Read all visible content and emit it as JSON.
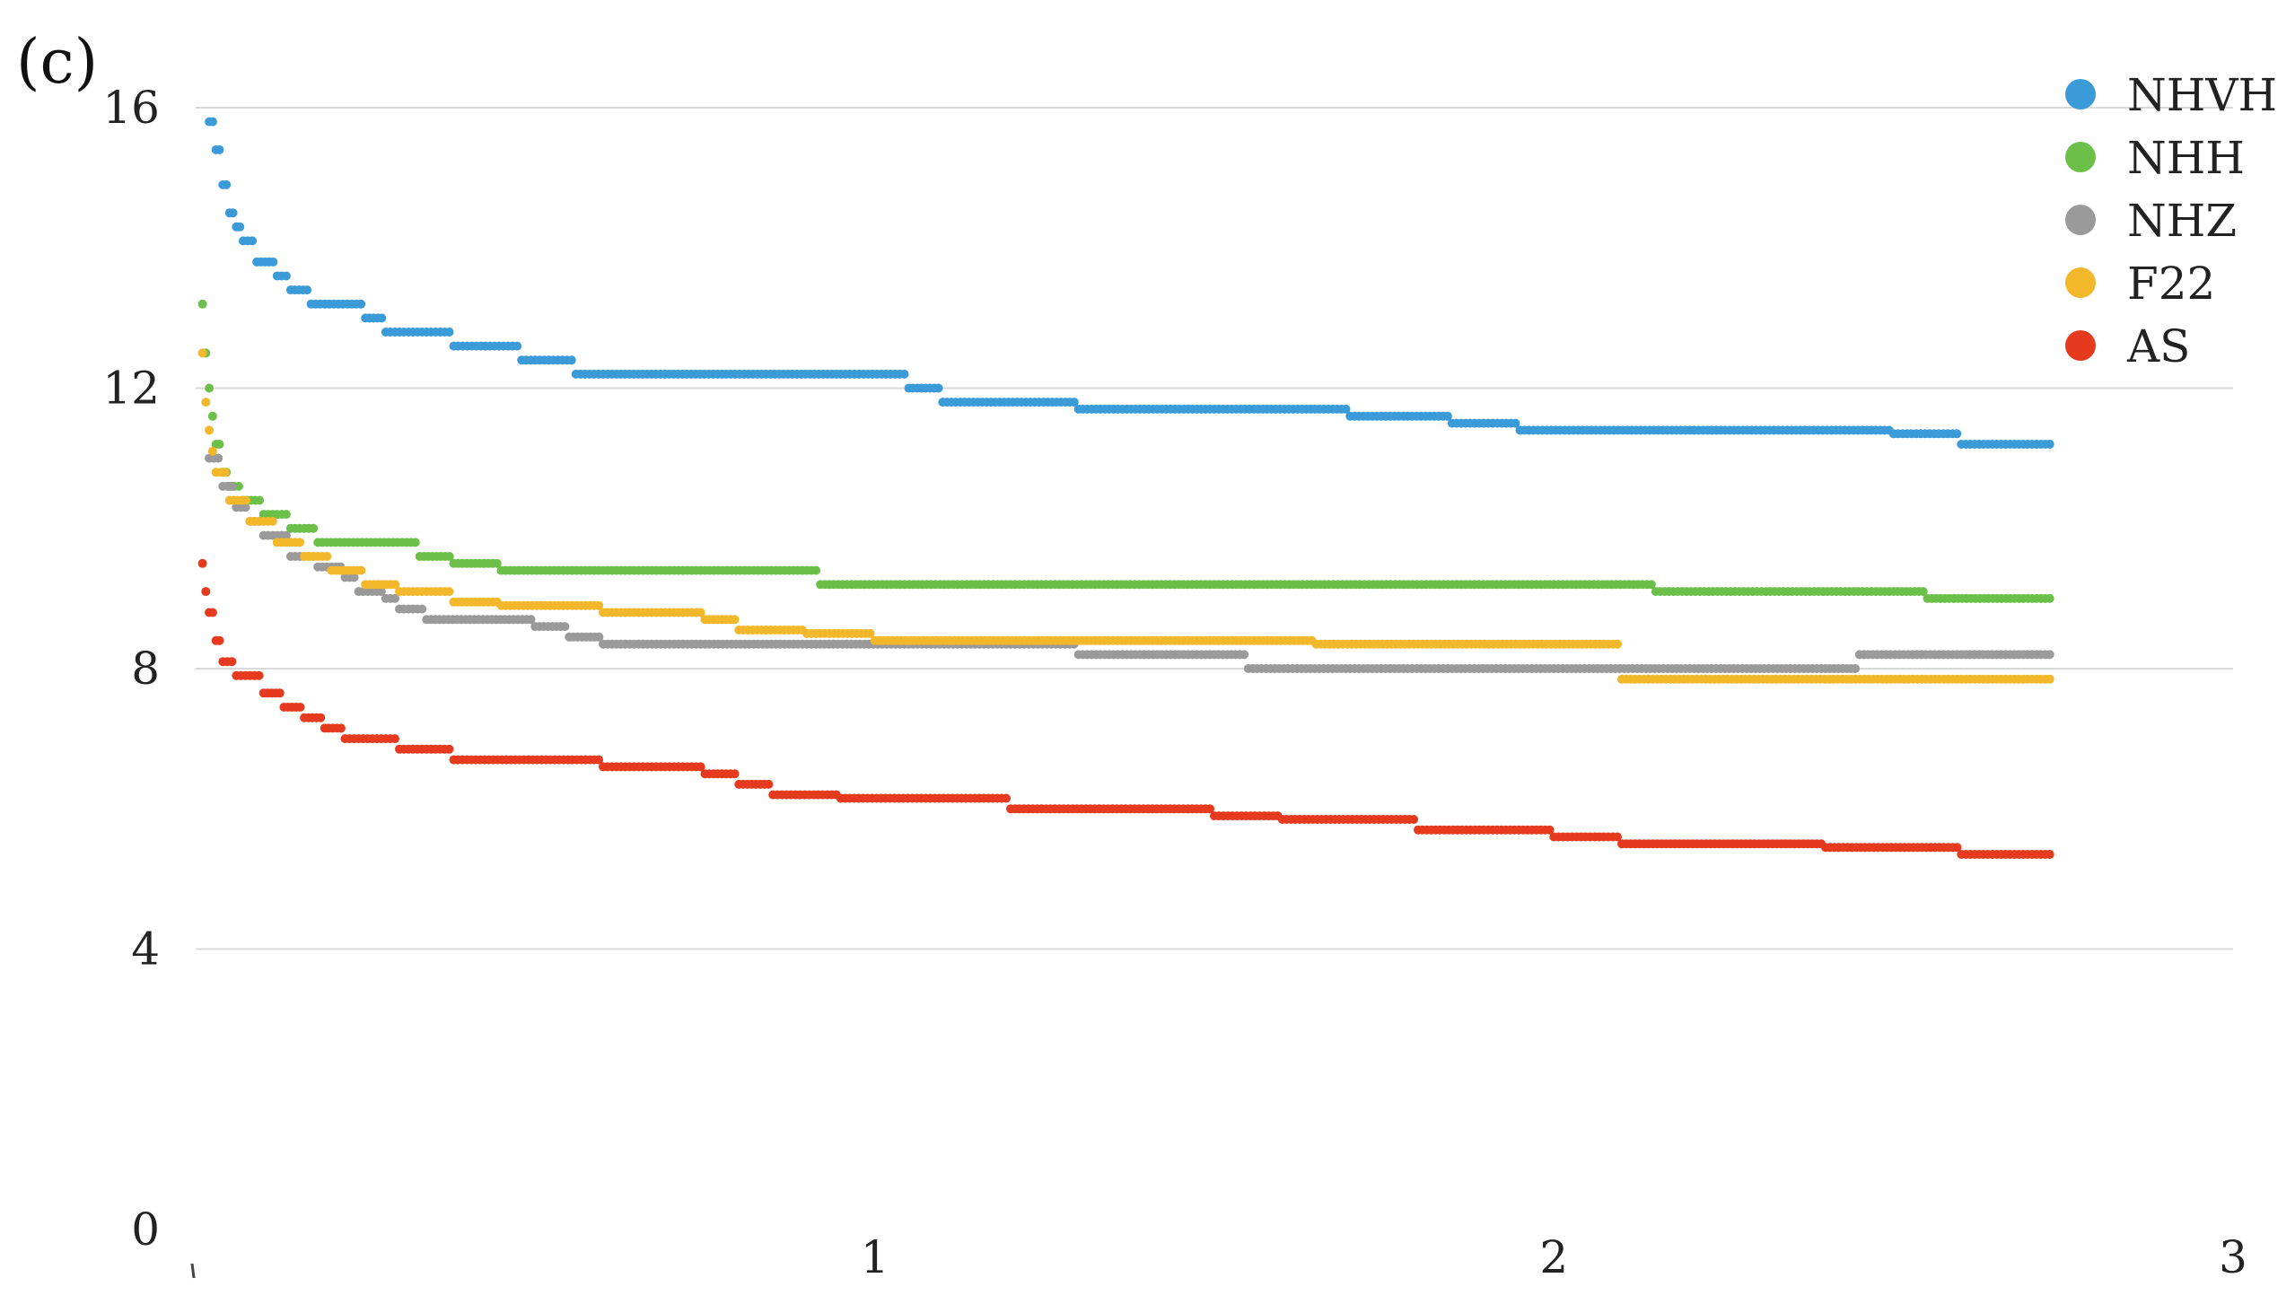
{
  "panel_label": "(c)",
  "chart_data": {
    "type": "scatter",
    "title": "",
    "xlabel": "",
    "ylabel": "",
    "xlim": [
      0,
      3
    ],
    "ylim": [
      0,
      16
    ],
    "x_ticks": [
      "1",
      "2",
      "3"
    ],
    "y_ticks": [
      "0",
      "4",
      "8",
      "12",
      "16"
    ],
    "grid": "horizontal",
    "legend": "top-right",
    "series": [
      {
        "name": "NHVH",
        "color": "#3b9ad8",
        "steps": [
          [
            0.02,
            15.8
          ],
          [
            0.03,
            15.4
          ],
          [
            0.04,
            14.9
          ],
          [
            0.05,
            14.5
          ],
          [
            0.06,
            14.3
          ],
          [
            0.07,
            14.1
          ],
          [
            0.09,
            13.8
          ],
          [
            0.12,
            13.6
          ],
          [
            0.14,
            13.4
          ],
          [
            0.17,
            13.2
          ],
          [
            0.25,
            13.0
          ],
          [
            0.28,
            12.8
          ],
          [
            0.38,
            12.6
          ],
          [
            0.48,
            12.4
          ],
          [
            0.56,
            12.2
          ],
          [
            0.6,
            12.2
          ],
          [
            0.95,
            12.2
          ],
          [
            1.05,
            12.0
          ],
          [
            1.1,
            11.8
          ],
          [
            1.3,
            11.7
          ],
          [
            1.7,
            11.6
          ],
          [
            1.85,
            11.5
          ],
          [
            1.95,
            11.4
          ],
          [
            2.2,
            11.4
          ],
          [
            2.5,
            11.35
          ],
          [
            2.6,
            11.2
          ],
          [
            2.73,
            11.2
          ]
        ]
      },
      {
        "name": "NHH",
        "color": "#6cc04a",
        "steps": [
          [
            0.01,
            13.2
          ],
          [
            0.015,
            12.5
          ],
          [
            0.02,
            12.0
          ],
          [
            0.025,
            11.6
          ],
          [
            0.03,
            11.2
          ],
          [
            0.04,
            10.8
          ],
          [
            0.05,
            10.6
          ],
          [
            0.07,
            10.4
          ],
          [
            0.1,
            10.2
          ],
          [
            0.14,
            10.0
          ],
          [
            0.18,
            9.8
          ],
          [
            0.33,
            9.6
          ],
          [
            0.38,
            9.5
          ],
          [
            0.45,
            9.4
          ],
          [
            0.6,
            9.4
          ],
          [
            0.9,
            9.4
          ],
          [
            0.92,
            9.2
          ],
          [
            1.5,
            9.2
          ],
          [
            2.0,
            9.2
          ],
          [
            2.15,
            9.1
          ],
          [
            2.5,
            9.1
          ],
          [
            2.55,
            9.0
          ],
          [
            2.73,
            9.0
          ]
        ]
      },
      {
        "name": "NHZ",
        "color": "#9a9a9a",
        "steps": [
          [
            0.02,
            11.0
          ],
          [
            0.04,
            10.6
          ],
          [
            0.06,
            10.3
          ],
          [
            0.08,
            10.1
          ],
          [
            0.1,
            9.9
          ],
          [
            0.14,
            9.6
          ],
          [
            0.18,
            9.45
          ],
          [
            0.22,
            9.3
          ],
          [
            0.24,
            9.1
          ],
          [
            0.28,
            9.0
          ],
          [
            0.3,
            8.85
          ],
          [
            0.34,
            8.7
          ],
          [
            0.5,
            8.6
          ],
          [
            0.55,
            8.45
          ],
          [
            0.6,
            8.35
          ],
          [
            0.9,
            8.35
          ],
          [
            1.2,
            8.35
          ],
          [
            1.3,
            8.2
          ],
          [
            1.5,
            8.2
          ],
          [
            1.55,
            8.0
          ],
          [
            2.0,
            8.0
          ],
          [
            2.4,
            8.0
          ],
          [
            2.45,
            8.2
          ],
          [
            2.73,
            8.2
          ]
        ]
      },
      {
        "name": "F22",
        "color": "#f2b72a",
        "steps": [
          [
            0.01,
            12.5
          ],
          [
            0.015,
            11.8
          ],
          [
            0.02,
            11.4
          ],
          [
            0.025,
            11.1
          ],
          [
            0.03,
            10.8
          ],
          [
            0.05,
            10.4
          ],
          [
            0.08,
            10.1
          ],
          [
            0.12,
            9.8
          ],
          [
            0.16,
            9.6
          ],
          [
            0.2,
            9.4
          ],
          [
            0.25,
            9.2
          ],
          [
            0.3,
            9.1
          ],
          [
            0.38,
            8.95
          ],
          [
            0.45,
            8.9
          ],
          [
            0.6,
            8.8
          ],
          [
            0.75,
            8.7
          ],
          [
            0.8,
            8.55
          ],
          [
            0.9,
            8.5
          ],
          [
            1.0,
            8.4
          ],
          [
            1.5,
            8.4
          ],
          [
            1.65,
            8.35
          ],
          [
            2.1,
            7.85
          ],
          [
            2.73,
            7.85
          ]
        ]
      },
      {
        "name": "AS",
        "color": "#e63a1e",
        "steps": [
          [
            0.01,
            9.5
          ],
          [
            0.015,
            9.1
          ],
          [
            0.02,
            8.8
          ],
          [
            0.03,
            8.4
          ],
          [
            0.04,
            8.1
          ],
          [
            0.06,
            7.9
          ],
          [
            0.1,
            7.65
          ],
          [
            0.13,
            7.45
          ],
          [
            0.16,
            7.3
          ],
          [
            0.19,
            7.15
          ],
          [
            0.22,
            7.0
          ],
          [
            0.3,
            6.85
          ],
          [
            0.38,
            6.7
          ],
          [
            0.6,
            6.6
          ],
          [
            0.75,
            6.5
          ],
          [
            0.8,
            6.35
          ],
          [
            0.85,
            6.2
          ],
          [
            0.95,
            6.15
          ],
          [
            1.2,
            6.0
          ],
          [
            1.5,
            5.9
          ],
          [
            1.6,
            5.85
          ],
          [
            1.8,
            5.7
          ],
          [
            2.0,
            5.6
          ],
          [
            2.1,
            5.5
          ],
          [
            2.4,
            5.45
          ],
          [
            2.6,
            5.35
          ],
          [
            2.73,
            5.35
          ]
        ]
      }
    ]
  }
}
